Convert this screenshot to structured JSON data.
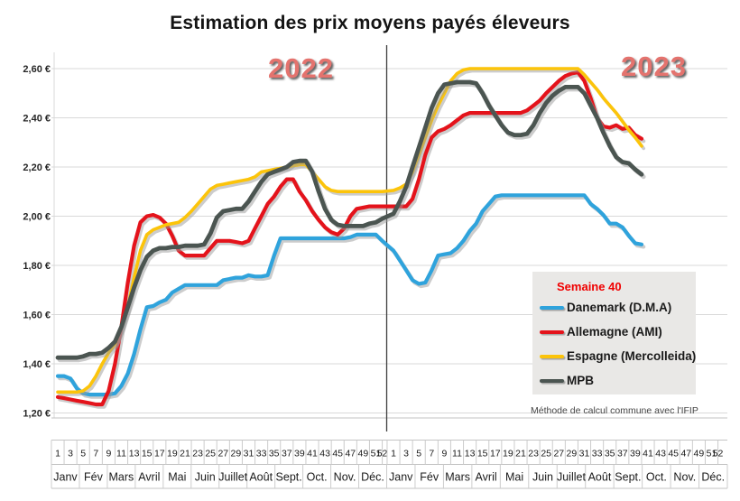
{
  "title": "Estimation des prix moyens payés éleveurs",
  "year_labels": [
    "2022",
    "2023"
  ],
  "legend": {
    "title": "Semaine 40",
    "title_color": "#f00000"
  },
  "note": "Méthode de calcul commune avec l'IFIP",
  "colors": {
    "grid": "#d9d9d9",
    "axis_band": "#c3c3c3",
    "divider": "#3f3f3f",
    "shadow": "#9a9a9a",
    "year_label": "#e4736e",
    "legend_bg": "#e9e8e6"
  },
  "y_axis": {
    "tick_values": [
      2.6,
      2.4,
      2.2,
      2.0,
      1.8,
      1.6,
      1.4,
      1.2
    ],
    "tick_labels": [
      "2,60 €",
      "2,40 €",
      "2,20 €",
      "2,00 €",
      "1,80 €",
      "1,60 €",
      "1,40 €",
      "1,20 €"
    ]
  },
  "x_axis": {
    "week_tick_labels": [
      "1",
      "3",
      "5",
      "7",
      "9",
      "11",
      "13",
      "15",
      "17",
      "19",
      "21",
      "23",
      "25",
      "27",
      "29",
      "31",
      "33",
      "35",
      "37",
      "39",
      "41",
      "43",
      "45",
      "47",
      "49",
      "51",
      "52"
    ],
    "months": [
      "Janv",
      "Fév",
      "Mars",
      "Avril",
      "Mai",
      "Juin",
      "Juillet",
      "Août",
      "Sept.",
      "Oct.",
      "Nov.",
      "Déc."
    ]
  },
  "chart_data": {
    "type": "line",
    "x_unit": "week",
    "years": [
      2022,
      2023
    ],
    "weeks_per_year": 52,
    "last_week_2023": 40,
    "ylim": [
      1.2,
      2.6
    ],
    "grid": "horizontal",
    "legend_position": "right-middle",
    "series": [
      {
        "name": "Danemark (D.M.A)",
        "color": "#2fa3dc",
        "width": 4.2,
        "values_2022": [
          1.35,
          1.35,
          1.34,
          1.3,
          1.28,
          1.275,
          1.275,
          1.275,
          1.275,
          1.28,
          1.31,
          1.36,
          1.44,
          1.54,
          1.63,
          1.635,
          1.65,
          1.66,
          1.69,
          1.705,
          1.72,
          1.72,
          1.72,
          1.72,
          1.72,
          1.72,
          1.74,
          1.745,
          1.75,
          1.75,
          1.76,
          1.755,
          1.755,
          1.76,
          1.84,
          1.91,
          1.91,
          1.91,
          1.91,
          1.91,
          1.91,
          1.91,
          1.91,
          1.91,
          1.91,
          1.91,
          1.915,
          1.925,
          1.925,
          1.925,
          1.925,
          1.9
        ],
        "values_2023": [
          1.86,
          1.82,
          1.78,
          1.74,
          1.725,
          1.73,
          1.78,
          1.84,
          1.845,
          1.85,
          1.87,
          1.9,
          1.94,
          1.97,
          2.02,
          2.05,
          2.08,
          2.085,
          2.085,
          2.085,
          2.085,
          2.085,
          2.085,
          2.085,
          2.085,
          2.085,
          2.085,
          2.085,
          2.085,
          2.085,
          2.085,
          2.05,
          2.03,
          2.005,
          1.97,
          1.97,
          1.955,
          1.92,
          1.89,
          1.885
        ]
      },
      {
        "name": "Allemagne (AMI)",
        "color": "#e4131b",
        "width": 4.2,
        "values_2022": [
          1.265,
          1.26,
          1.255,
          1.25,
          1.245,
          1.24,
          1.235,
          1.235,
          1.29,
          1.4,
          1.55,
          1.73,
          1.88,
          1.975,
          2.0,
          2.005,
          1.995,
          1.97,
          1.92,
          1.86,
          1.84,
          1.84,
          1.84,
          1.84,
          1.87,
          1.9,
          1.9,
          1.9,
          1.895,
          1.89,
          1.9,
          1.95,
          2.0,
          2.05,
          2.08,
          2.12,
          2.15,
          2.15,
          2.1,
          2.065,
          2.02,
          1.985,
          1.955,
          1.935,
          1.925,
          1.95,
          2.0,
          2.03,
          2.035,
          2.04,
          2.04,
          2.04
        ],
        "values_2023": [
          2.04,
          2.04,
          2.04,
          2.07,
          2.15,
          2.25,
          2.32,
          2.345,
          2.355,
          2.37,
          2.39,
          2.41,
          2.42,
          2.42,
          2.42,
          2.42,
          2.42,
          2.42,
          2.42,
          2.42,
          2.42,
          2.43,
          2.45,
          2.47,
          2.5,
          2.525,
          2.55,
          2.57,
          2.58,
          2.585,
          2.55,
          2.48,
          2.4,
          2.365,
          2.36,
          2.37,
          2.355,
          2.36,
          2.33,
          2.315
        ]
      },
      {
        "name": "Espagne (Mercolleida)",
        "color": "#fcc40a",
        "width": 3.6,
        "values_2022": [
          1.285,
          1.285,
          1.285,
          1.285,
          1.29,
          1.31,
          1.35,
          1.4,
          1.445,
          1.48,
          1.55,
          1.63,
          1.75,
          1.86,
          1.925,
          1.945,
          1.955,
          1.965,
          1.97,
          1.975,
          1.995,
          2.02,
          2.05,
          2.08,
          2.11,
          2.125,
          2.13,
          2.135,
          2.14,
          2.145,
          2.15,
          2.16,
          2.18,
          2.185,
          2.19,
          2.195,
          2.2,
          2.205,
          2.21,
          2.21,
          2.18,
          2.15,
          2.12,
          2.105,
          2.1,
          2.1,
          2.1,
          2.1,
          2.1,
          2.1,
          2.1,
          2.1
        ],
        "values_2023": [
          2.105,
          2.115,
          2.13,
          2.18,
          2.25,
          2.32,
          2.39,
          2.45,
          2.5,
          2.55,
          2.58,
          2.595,
          2.6,
          2.6,
          2.6,
          2.6,
          2.6,
          2.6,
          2.6,
          2.6,
          2.6,
          2.6,
          2.6,
          2.6,
          2.6,
          2.6,
          2.6,
          2.6,
          2.6,
          2.6,
          2.575,
          2.545,
          2.515,
          2.48,
          2.45,
          2.42,
          2.385,
          2.35,
          2.32,
          2.285
        ]
      },
      {
        "name": "MPB",
        "color": "#4b5551",
        "width": 4.8,
        "values_2022": [
          1.425,
          1.425,
          1.425,
          1.425,
          1.43,
          1.44,
          1.44,
          1.445,
          1.465,
          1.49,
          1.55,
          1.63,
          1.71,
          1.78,
          1.835,
          1.86,
          1.87,
          1.87,
          1.875,
          1.875,
          1.88,
          1.88,
          1.88,
          1.885,
          1.93,
          1.995,
          2.02,
          2.025,
          2.03,
          2.03,
          2.06,
          2.1,
          2.14,
          2.17,
          2.18,
          2.19,
          2.2,
          2.22,
          2.225,
          2.225,
          2.18,
          2.1,
          2.03,
          1.985,
          1.965,
          1.96,
          1.96,
          1.96,
          1.96,
          1.97,
          1.975,
          1.99
        ],
        "values_2023": [
          2.01,
          2.06,
          2.12,
          2.2,
          2.28,
          2.36,
          2.44,
          2.5,
          2.535,
          2.54,
          2.545,
          2.545,
          2.545,
          2.54,
          2.5,
          2.45,
          2.41,
          2.37,
          2.34,
          2.33,
          2.33,
          2.335,
          2.37,
          2.42,
          2.46,
          2.49,
          2.51,
          2.525,
          2.525,
          2.525,
          2.5,
          2.45,
          2.4,
          2.34,
          2.285,
          2.24,
          2.22,
          2.215,
          2.19,
          2.17
        ]
      }
    ]
  }
}
